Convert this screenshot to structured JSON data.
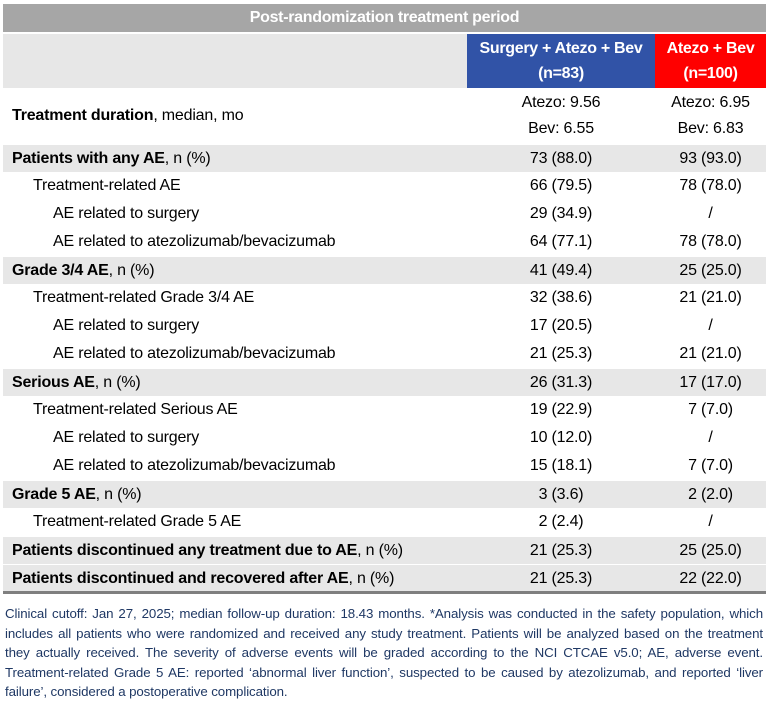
{
  "title": "Post-randomization treatment period",
  "columns": [
    {
      "name": "Surgery + Atezo + Bev",
      "n": "(n=83)",
      "color": "#3153a7"
    },
    {
      "name": "Atezo + Bev",
      "n": "(n=100)",
      "color": "#ff0000"
    }
  ],
  "duration": {
    "label_bold": "Treatment duration",
    "label_rest": ", median, mo",
    "v1a": "Atezo: 9.56",
    "v1b": "Bev: 6.55",
    "v2a": "Atezo: 6.95",
    "v2b": "Bev: 6.83"
  },
  "rows": [
    {
      "bold": "Patients with any AE",
      "rest": ", n (%)",
      "v1": "73 (88.0)",
      "v2": "93 (93.0)"
    },
    {
      "text": "Treatment-related AE",
      "v1": "66 (79.5)",
      "v2": "78 (78.0)"
    },
    {
      "text": "AE related to surgery",
      "v1": "29 (34.9)",
      "v2": "/"
    },
    {
      "text": "AE related to atezolizumab/bevacizumab",
      "v1": "64 (77.1)",
      "v2": "78 (78.0)"
    },
    {
      "bold": "Grade 3/4 AE",
      "rest": ", n (%)",
      "v1": "41 (49.4)",
      "v2": "25 (25.0)"
    },
    {
      "text": "Treatment-related Grade 3/4 AE",
      "v1": "32 (38.6)",
      "v2": "21 (21.0)"
    },
    {
      "text": "AE related to surgery",
      "v1": "17 (20.5)",
      "v2": "/"
    },
    {
      "text": "AE related to atezolizumab/bevacizumab",
      "v1": "21 (25.3)",
      "v2": "21 (21.0)"
    },
    {
      "bold": "Serious AE",
      "rest": ", n (%)",
      "v1": "26 (31.3)",
      "v2": "17 (17.0)"
    },
    {
      "text": "Treatment-related Serious AE",
      "v1": "19 (22.9)",
      "v2": "7 (7.0)"
    },
    {
      "text": "AE related to surgery",
      "v1": "10 (12.0)",
      "v2": "/"
    },
    {
      "text": "AE related to atezolizumab/bevacizumab",
      "v1": "15 (18.1)",
      "v2": "7 (7.0)"
    },
    {
      "bold": "Grade 5 AE",
      "rest": ", n (%)",
      "v1": "3 (3.6)",
      "v2": "2 (2.0)"
    },
    {
      "text": "Treatment-related Grade 5 AE",
      "v1": "2 (2.4)",
      "v2": "/"
    },
    {
      "bold": "Patients discontinued any treatment due to AE",
      "rest": ", n (%)",
      "v1": "21 (25.3)",
      "v2": "25 (25.0)"
    },
    {
      "bold": "Patients discontinued and recovered after AE",
      "rest": ", n (%)",
      "v1": "21 (25.3)",
      "v2": "22 (22.0)"
    }
  ],
  "footnote": "Clinical cutoff: Jan 27, 2025; median follow-up duration: 18.43 months. *Analysis was conducted in the safety population, which includes all patients who were randomized and received any study treatment. Patients will be analyzed based on the treatment they actually received. The severity of adverse events will be graded according to the NCI CTCAE v5.0; AE, adverse event. Treatment-related Grade 5 AE: reported ‘abnormal liver function’, suspected to be caused by atezolizumab, and reported ‘liver failure’, considered a postoperative complication."
}
